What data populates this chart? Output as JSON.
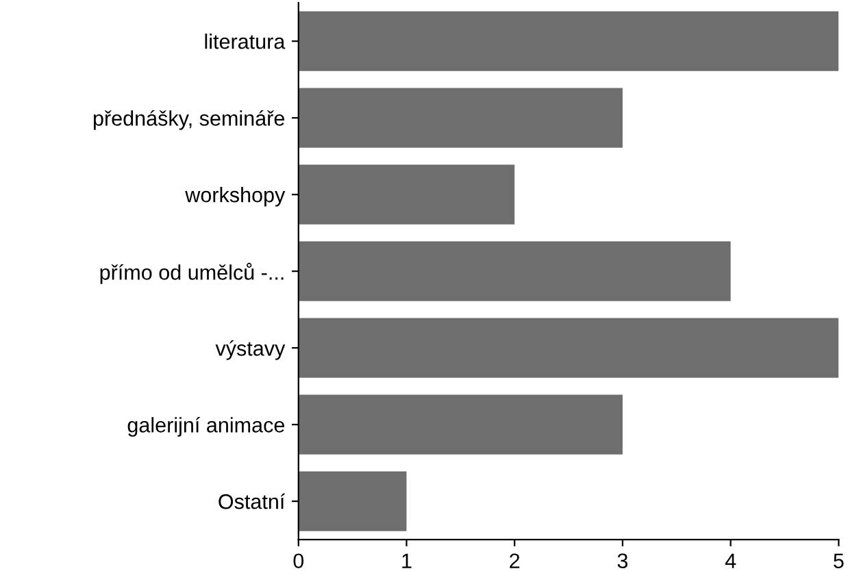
{
  "chart_data": {
    "type": "bar",
    "orientation": "horizontal",
    "categories": [
      "literatura",
      "přednášky, semináře",
      "workshopy",
      "přímo od umělců -...",
      "výstavy",
      "galerijní animace",
      "Ostatní"
    ],
    "values": [
      5,
      3,
      2,
      4,
      5,
      3,
      1
    ],
    "color": "#6e6e6e",
    "xlim": [
      0,
      5
    ],
    "xticks": [
      0,
      1,
      2,
      3,
      4,
      5
    ],
    "grid": false
  }
}
